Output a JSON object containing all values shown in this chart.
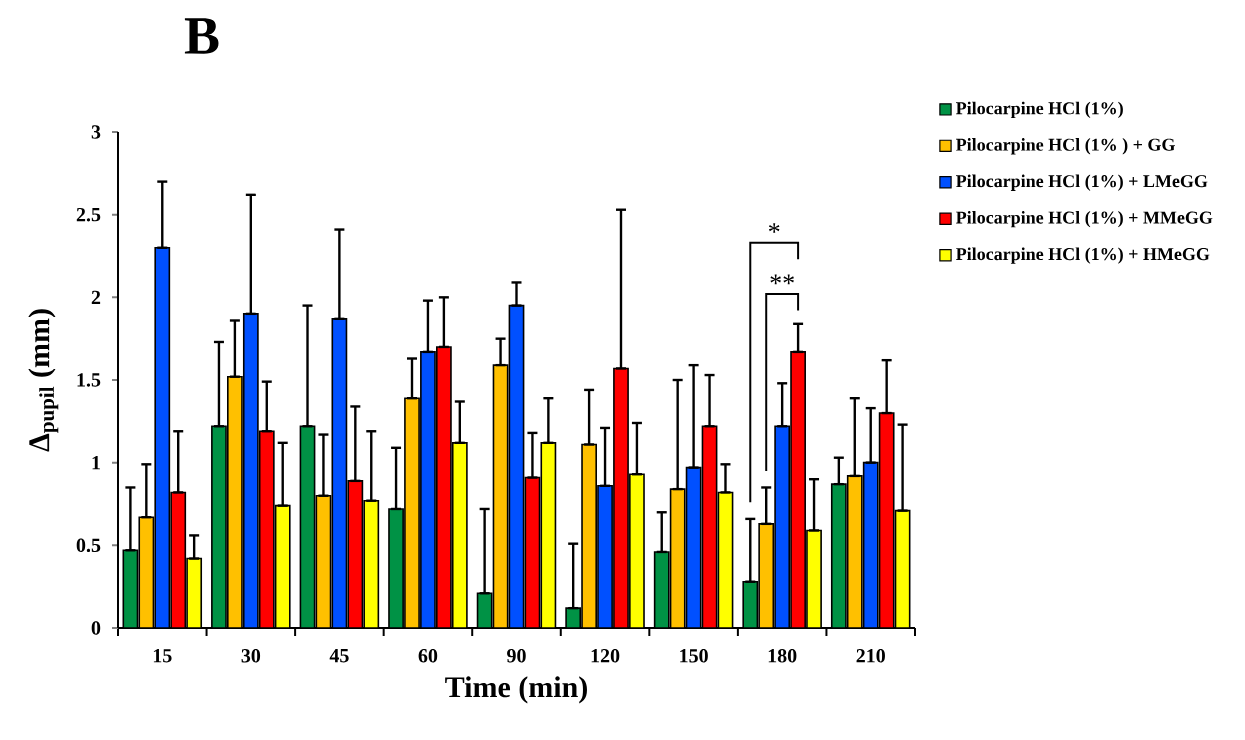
{
  "chart_data": {
    "type": "bar",
    "title": "B",
    "xlabel": "Time (min)",
    "ylabel": "Δ$_{pupil}$ (mm)",
    "categories": [
      "15",
      "30",
      "45",
      "60",
      "90",
      "120",
      "150",
      "180",
      "210"
    ],
    "series": [
      {
        "name": "Pilocarpine HCl (1%)",
        "color": "#009245",
        "values": [
          0.47,
          1.22,
          1.22,
          0.72,
          0.21,
          0.12,
          0.46,
          0.28,
          0.87
        ],
        "errors": [
          [
            0.47,
            0.85
          ],
          [
            1.22,
            1.73
          ],
          [
            1.22,
            1.95
          ],
          [
            0.72,
            1.09
          ],
          [
            0.21,
            0.72
          ],
          [
            0.12,
            0.51
          ],
          [
            0.46,
            0.7
          ],
          [
            0.28,
            0.66
          ],
          [
            0.87,
            1.03
          ]
        ]
      },
      {
        "name": "Pilocarpine HCl (1% ) + GG",
        "color": "#ffc000",
        "values": [
          0.67,
          1.52,
          0.8,
          1.39,
          1.59,
          1.11,
          0.84,
          0.63,
          0.92
        ],
        "errors": [
          [
            0.67,
            0.99
          ],
          [
            1.52,
            1.86
          ],
          [
            0.8,
            1.17
          ],
          [
            1.39,
            1.63
          ],
          [
            1.59,
            1.75
          ],
          [
            1.11,
            1.44
          ],
          [
            0.84,
            1.5
          ],
          [
            0.63,
            0.85
          ],
          [
            0.92,
            1.39
          ]
        ]
      },
      {
        "name": "Pilocarpine HCl (1%) + LMeGG",
        "color": "#0050ff",
        "values": [
          2.3,
          1.9,
          1.87,
          1.67,
          1.95,
          0.86,
          0.97,
          1.22,
          1.0
        ],
        "errors": [
          [
            2.3,
            2.7
          ],
          [
            1.9,
            2.62
          ],
          [
            1.87,
            2.41
          ],
          [
            1.67,
            1.98
          ],
          [
            1.95,
            2.09
          ],
          [
            0.86,
            1.21
          ],
          [
            0.97,
            1.59
          ],
          [
            1.22,
            1.48
          ],
          [
            1.0,
            1.33
          ]
        ]
      },
      {
        "name": "Pilocarpine HCl (1%) + MMeGG",
        "color": "#ff0000",
        "values": [
          0.82,
          1.19,
          0.89,
          1.7,
          0.91,
          1.57,
          1.22,
          1.67,
          1.3
        ],
        "errors": [
          [
            0.82,
            1.19
          ],
          [
            1.19,
            1.49
          ],
          [
            0.89,
            1.34
          ],
          [
            1.7,
            2.0
          ],
          [
            0.91,
            1.18
          ],
          [
            1.57,
            2.53
          ],
          [
            1.22,
            1.53
          ],
          [
            1.67,
            1.84
          ],
          [
            1.3,
            1.62
          ]
        ]
      },
      {
        "name": "Pilocarpine HCl (1%) + HMeGG",
        "color": "#ffff00",
        "values": [
          0.42,
          0.74,
          0.77,
          1.12,
          1.12,
          0.93,
          0.82,
          0.59,
          0.71
        ],
        "errors": [
          [
            0.42,
            0.56
          ],
          [
            0.74,
            1.12
          ],
          [
            0.77,
            1.19
          ],
          [
            1.12,
            1.37
          ],
          [
            1.12,
            1.39
          ],
          [
            0.93,
            1.24
          ],
          [
            0.82,
            0.99
          ],
          [
            0.59,
            0.9
          ],
          [
            0.71,
            1.23
          ]
        ]
      }
    ],
    "ylim": [
      0,
      3
    ],
    "yticks": [
      0,
      0.5,
      1,
      1.5,
      2,
      2.5,
      3
    ],
    "annotations": [
      "*",
      "**"
    ],
    "legend": "right"
  }
}
